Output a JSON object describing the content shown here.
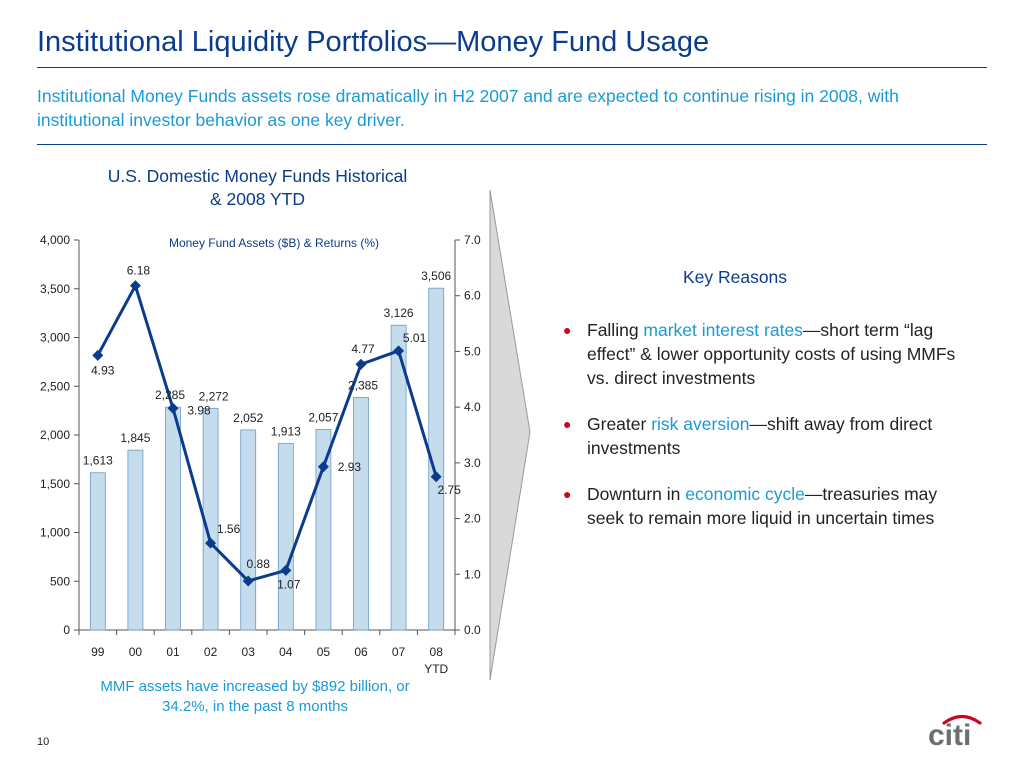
{
  "header": {
    "title": "Institutional Liquidity Portfolios—Money Fund Usage",
    "subtitle": "Institutional Money Funds assets rose dramatically in H2 2007 and are expected to continue rising in 2008, with institutional investor behavior as one key driver."
  },
  "chart_section": {
    "title_line1": "U.S. Domestic Money Funds Historical",
    "title_line2": "& 2008 YTD",
    "footnote": "MMF assets have increased by $892 billion, or 34.2%, in the past 8 months"
  },
  "chart_data": {
    "type": "bar",
    "title": "U.S. Domestic Money Funds Historical & 2008 YTD",
    "subtitle": "Money Fund Assets ($B) & Returns (%)",
    "categories": [
      "99",
      "00",
      "01",
      "02",
      "03",
      "04",
      "05",
      "06",
      "07",
      "08"
    ],
    "category_sublabels": [
      "",
      "",
      "",
      "",
      "",
      "",
      "",
      "",
      "",
      "YTD"
    ],
    "series": [
      {
        "name": "Money Fund Assets ($B)",
        "type": "bar",
        "axis": "left",
        "values": [
          1613,
          1845,
          2285,
          2272,
          2052,
          1913,
          2057,
          2385,
          3126,
          3506
        ],
        "labels": [
          "1,613",
          "1,845",
          "2,285",
          "2,272",
          "2,052",
          "1,913",
          "2,057",
          "2,385",
          "3,126",
          "3,506"
        ],
        "color": "#c5dcec"
      },
      {
        "name": "Returns (%)",
        "type": "line",
        "axis": "right",
        "values": [
          4.93,
          6.18,
          3.98,
          1.56,
          0.88,
          1.07,
          2.93,
          4.77,
          5.01,
          2.75
        ],
        "labels": [
          "4.93",
          "6.18",
          "3.98",
          "1.56",
          "0.88",
          "1.07",
          "2.93",
          "4.77",
          "5.01",
          "2.75"
        ],
        "color": "#0b3c8c"
      }
    ],
    "y_left": {
      "min": 0,
      "max": 4000,
      "ticks": [
        0,
        500,
        1000,
        1500,
        2000,
        2500,
        3000,
        3500,
        4000
      ],
      "tick_labels": [
        "0",
        "500",
        "1,000",
        "1,500",
        "2,000",
        "2,500",
        "3,000",
        "3,500",
        "4,000"
      ]
    },
    "y_right": {
      "min": 0,
      "max": 7,
      "ticks": [
        0,
        1,
        2,
        3,
        4,
        5,
        6,
        7
      ],
      "tick_labels": [
        "0.0",
        "1.0",
        "2.0",
        "3.0",
        "4.0",
        "5.0",
        "6.0",
        "7.0"
      ]
    },
    "grid": false
  },
  "key_reasons": {
    "title": "Key Reasons",
    "items": [
      {
        "prefix": "Falling ",
        "highlight": "market interest rates",
        "suffix": "—short term “lag effect” & lower opportunity costs of using MMFs vs. direct investments"
      },
      {
        "prefix": "Greater ",
        "highlight": "risk aversion",
        "suffix": "—shift away from direct investments"
      },
      {
        "prefix": "Downturn in ",
        "highlight": "economic cycle",
        "suffix": "—treasuries may seek to remain more liquid in uncertain times"
      }
    ]
  },
  "footer": {
    "page_number": "10",
    "logo_text": "citi"
  },
  "colors": {
    "title": "#0b3c8c",
    "accent": "#1a9ad6",
    "bullet": "#d0021b",
    "logo": "#6b6f72",
    "logo_arc": "#d0021b"
  }
}
